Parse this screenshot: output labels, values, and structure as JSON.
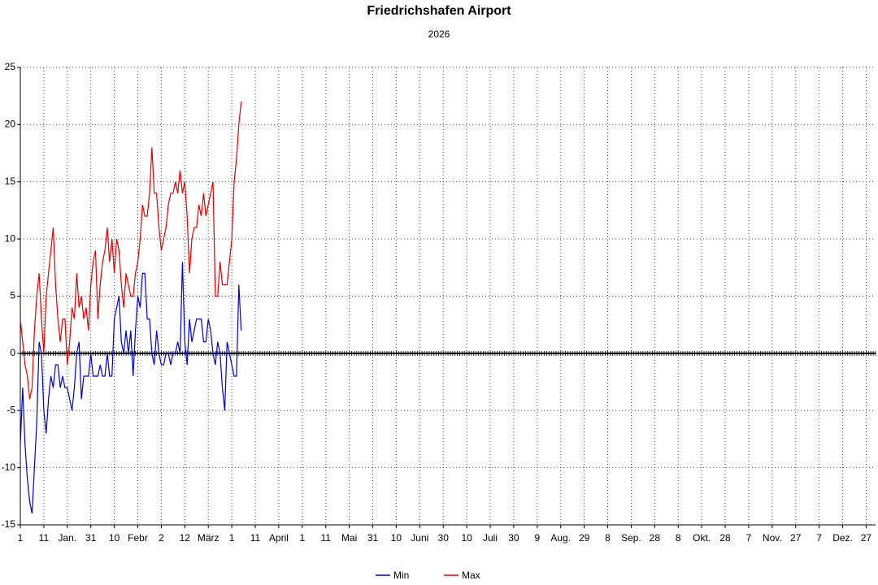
{
  "chart_data": {
    "type": "line",
    "title": "Friedrichshafen Airport",
    "subtitle": "2026",
    "x": [
      1,
      2,
      3,
      4,
      5,
      6,
      7,
      8,
      9,
      10,
      11,
      12,
      13,
      14,
      15,
      16,
      17,
      18,
      19,
      20,
      21,
      22,
      23,
      24,
      25,
      26,
      27,
      28,
      29,
      30,
      31,
      32,
      33,
      34,
      35,
      36,
      37,
      38,
      39,
      40,
      41,
      42,
      43,
      44,
      45,
      46,
      47,
      48,
      49,
      50,
      51,
      52,
      53,
      54,
      55,
      56,
      57,
      58,
      59,
      60,
      61,
      62,
      63,
      64,
      65,
      66,
      67,
      68,
      69,
      70,
      71,
      72,
      73,
      74,
      75,
      76,
      77,
      78,
      79,
      80,
      81,
      82,
      83,
      84,
      85,
      86,
      87,
      88,
      89,
      90,
      91,
      92,
      93,
      94,
      95
    ],
    "series": [
      {
        "name": "Min",
        "color": "#0000cc",
        "values": [
          -8,
          -3,
          -8,
          -11,
          -13,
          -14,
          -10,
          -6,
          1,
          0,
          -5,
          -7,
          -4,
          -2,
          -3,
          -1,
          -1,
          -3,
          -2,
          -3,
          -3,
          -4,
          -5,
          -3,
          0,
          1,
          -4,
          -2,
          -2,
          -2,
          0,
          -2,
          -2,
          -2,
          -1,
          -2,
          -2,
          0,
          -2,
          -2,
          3,
          4,
          5,
          1,
          0,
          2,
          0,
          2,
          -2,
          2,
          5,
          4,
          7,
          7,
          3,
          3,
          0,
          -1,
          2,
          0,
          -1,
          -1,
          0,
          0,
          -1,
          0,
          0,
          1,
          0,
          8,
          1,
          -1,
          3,
          1,
          2,
          3,
          3,
          3,
          1,
          1,
          3,
          2,
          0,
          -1,
          1,
          0,
          -3,
          -5,
          1,
          0,
          -1,
          -2,
          -2,
          6,
          2
        ]
      },
      {
        "name": "Max",
        "color": "#e00000",
        "values": [
          3,
          1,
          -1,
          -2,
          -4,
          -3,
          2,
          5,
          7,
          3,
          0,
          5,
          7,
          9,
          11,
          6,
          3,
          1,
          3,
          3,
          -1,
          1,
          4,
          3,
          7,
          4,
          5,
          3,
          4,
          2,
          6,
          8,
          9,
          3,
          6,
          8,
          9,
          11,
          8,
          10,
          7,
          10,
          9,
          6,
          4,
          7,
          6,
          5,
          5,
          7,
          8,
          10,
          13,
          12,
          12,
          14,
          18,
          14,
          14,
          11,
          9,
          10,
          11,
          13,
          14,
          14,
          15,
          14,
          16,
          14,
          15,
          12,
          7,
          10,
          11,
          11,
          13,
          12,
          14,
          12,
          13,
          14,
          15,
          5,
          5,
          8,
          6,
          6,
          6,
          8,
          10,
          15,
          17,
          20,
          22
        ]
      }
    ],
    "xlim": [
      1,
      365
    ],
    "ylim": [
      -15,
      25
    ],
    "xticks": [
      1,
      {
        "value": 11,
        "label": "11"
      },
      {
        "value": 21,
        "label": "Jan."
      },
      {
        "value": 31,
        "label": "31"
      },
      {
        "value": 41,
        "label": "10"
      },
      {
        "value": 51,
        "label": "Febr"
      },
      {
        "value": 61,
        "label": "2"
      },
      {
        "value": 71,
        "label": "12"
      },
      {
        "value": 81,
        "label": "März"
      },
      {
        "value": 91,
        "label": "1"
      },
      {
        "value": 101,
        "label": "11"
      },
      {
        "value": 111,
        "label": "April"
      },
      {
        "value": 121,
        "label": "1"
      },
      {
        "value": 131,
        "label": "11"
      },
      {
        "value": 141,
        "label": "Mai"
      },
      {
        "value": 151,
        "label": "31"
      },
      {
        "value": 161,
        "label": "10"
      },
      {
        "value": 171,
        "label": "Juni"
      },
      {
        "value": 181,
        "label": "30"
      },
      {
        "value": 191,
        "label": "10"
      },
      {
        "value": 201,
        "label": "Juli"
      },
      {
        "value": 211,
        "label": "30"
      },
      {
        "value": 221,
        "label": "9"
      },
      {
        "value": 231,
        "label": "Aug."
      },
      {
        "value": 241,
        "label": "29"
      },
      {
        "value": 251,
        "label": "8"
      },
      {
        "value": 261,
        "label": "Sep."
      },
      {
        "value": 271,
        "label": "28"
      },
      {
        "value": 281,
        "label": "8"
      },
      {
        "value": 291,
        "label": "Okt."
      },
      {
        "value": 301,
        "label": "28"
      },
      {
        "value": 311,
        "label": "7"
      },
      {
        "value": 321,
        "label": "Nov."
      },
      {
        "value": 331,
        "label": "27"
      },
      {
        "value": 341,
        "label": "7"
      },
      {
        "value": 351,
        "label": "Dez."
      },
      {
        "value": 361,
        "label": "27"
      }
    ],
    "yticks": [
      25,
      20,
      15,
      10,
      5,
      0,
      -5,
      -10,
      -15
    ],
    "grid": true,
    "zero_line": true,
    "legend": "bottom"
  }
}
